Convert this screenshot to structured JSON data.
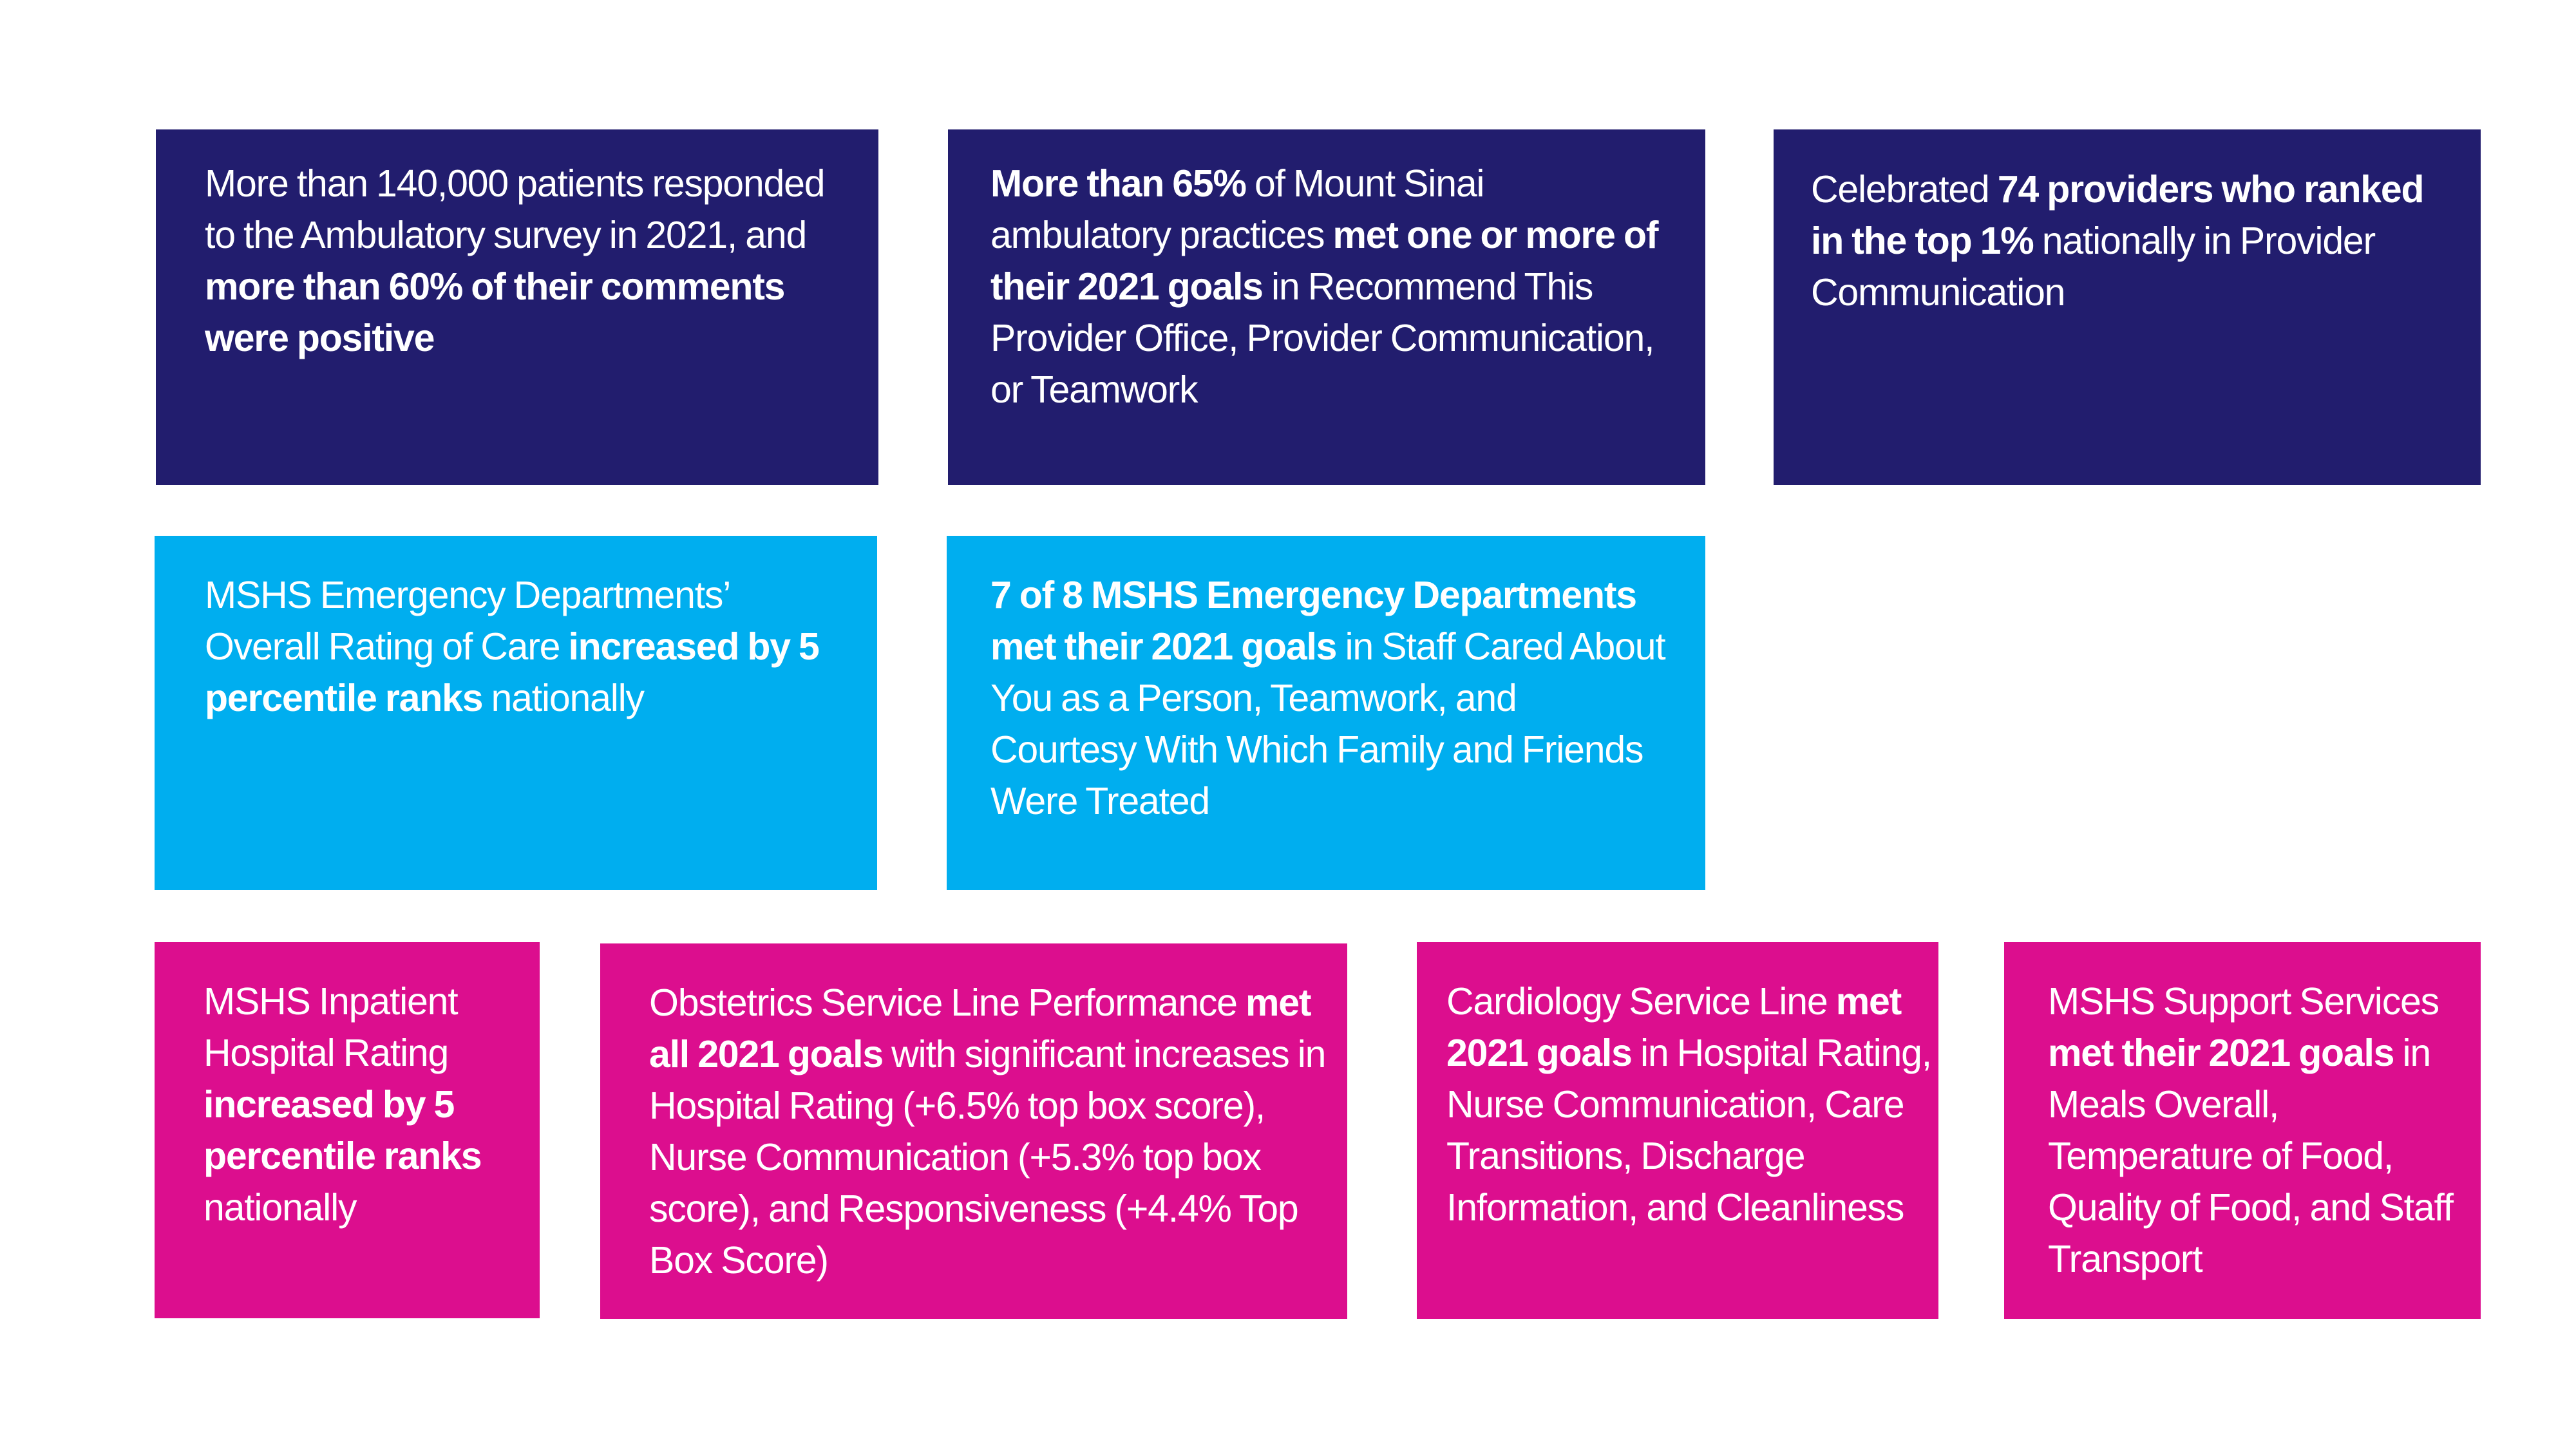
{
  "colors": {
    "navy": "#221d6e",
    "cyan": "#00aeef",
    "magenta": "#dc0e8e",
    "text": "#ffffff",
    "background": "#ffffff"
  },
  "cards": [
    {
      "t1": "More than 140,000 patients responded to the Ambulatory survey in 2021, and ",
      "b1": "more than 60% of their comments were positive"
    },
    {
      "b1": "More than 65%",
      "t1": " of Mount Sinai ambulatory practices ",
      "b2": "met one or more of their 2021 goals",
      "t2": " in Recommend This Provider Office, Provider Communication, or Teamwork"
    },
    {
      "t1": "Celebrated ",
      "b1": "74 providers who ranked in the top 1%",
      "t2": " nationally in Provider Communication"
    },
    {
      "t1": "MSHS Emergency Departments’ Overall Rating of Care ",
      "b1": "increased by 5 percentile ranks",
      "t2": " nationally"
    },
    {
      "b1": "7 of 8 MSHS Emergency Departments met their 2021 goals",
      "t1": " in Staff Cared About You as a Person, Teamwork, and Courtesy With Which Family and Friends Were Treated"
    },
    {
      "t1": "MSHS Inpatient Hospital Rating ",
      "b1": "increased by 5 percentile ranks",
      "t2": " nationally"
    },
    {
      "t1": "Obstetrics Service Line Performance ",
      "b1": "met all 2021 goals",
      "t2": " with significant increases in Hospital Rating (+6.5% top box score), Nurse Communication (+5.3% top box score), and Responsiveness (+4.4% Top Box Score)"
    },
    {
      "t1": "Cardiology Service Line ",
      "b1": "met 2021 goals",
      "t2": " in Hospital Rating, Nurse Communication, Care Transitions, Discharge Information, and Cleanliness"
    },
    {
      "t1": "MSHS Support Services ",
      "b1": "met their 2021 goals",
      "t2": " in Meals Overall, Temperature of Food, Quality of Food, and Staff Transport"
    }
  ]
}
